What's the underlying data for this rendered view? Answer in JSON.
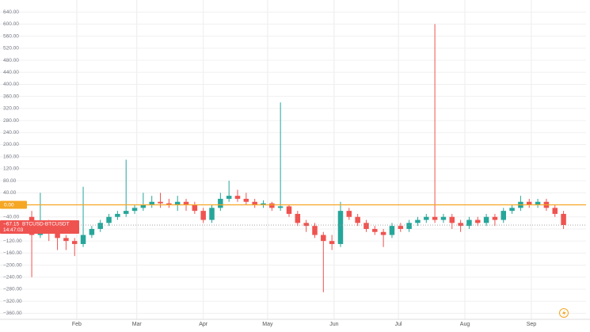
{
  "chart_data": {
    "type": "candlestick",
    "x": [
      10,
      14,
      18,
      22,
      26,
      30,
      34,
      38,
      42,
      46,
      50,
      54,
      58,
      62,
      66,
      70,
      74,
      78,
      82,
      86,
      90,
      94,
      98,
      102,
      106,
      110,
      114,
      118,
      122,
      126,
      130,
      134,
      138,
      142,
      146,
      150,
      154,
      158,
      162,
      166,
      170,
      174,
      178,
      182,
      186,
      190,
      194,
      198,
      202,
      206,
      210,
      214,
      218,
      222,
      226,
      230,
      234,
      238,
      242,
      246,
      250,
      254,
      258
    ],
    "open": [
      -40,
      -100,
      -60,
      -90,
      -110,
      -120,
      -130,
      -100,
      -80,
      -60,
      -40,
      -30,
      -20,
      -10,
      0,
      10,
      5,
      0,
      10,
      0,
      -20,
      -50,
      -10,
      20,
      30,
      20,
      10,
      0,
      5,
      -10,
      -5,
      -30,
      -60,
      -70,
      -100,
      -120,
      -130,
      -20,
      -40,
      -60,
      -80,
      -90,
      -100,
      -70,
      -80,
      -60,
      -50,
      -40,
      -50,
      -40,
      -60,
      -70,
      -50,
      -60,
      -40,
      -50,
      -20,
      -10,
      10,
      0,
      10,
      -10,
      -30
    ],
    "high": [
      -20,
      40,
      -50,
      -80,
      -100,
      -110,
      60,
      -70,
      -50,
      -30,
      -20,
      150,
      0,
      40,
      30,
      40,
      20,
      30,
      20,
      10,
      -10,
      0,
      40,
      80,
      50,
      40,
      20,
      15,
      10,
      340,
      0,
      -20,
      -50,
      -60,
      -90,
      -100,
      10,
      -10,
      -30,
      -50,
      -70,
      -80,
      -60,
      -60,
      -50,
      -40,
      -30,
      600,
      -30,
      -30,
      -50,
      -40,
      -40,
      -30,
      -30,
      -10,
      0,
      30,
      20,
      20,
      20,
      0,
      -20
    ],
    "low": [
      -240,
      -110,
      -120,
      -150,
      -150,
      -170,
      -140,
      -110,
      -90,
      -70,
      -50,
      -40,
      -30,
      -20,
      -10,
      -10,
      -10,
      -20,
      -20,
      -30,
      -60,
      -60,
      -20,
      10,
      10,
      0,
      -10,
      -10,
      -20,
      -20,
      -40,
      -70,
      -90,
      -110,
      -290,
      -150,
      -140,
      -50,
      -70,
      -90,
      -100,
      -140,
      -110,
      -90,
      -90,
      -70,
      -60,
      -60,
      -60,
      -80,
      -90,
      -80,
      -70,
      -70,
      -70,
      -60,
      -30,
      -20,
      -10,
      -10,
      -20,
      -40,
      -80
    ],
    "close": [
      -100,
      -60,
      -90,
      -110,
      -120,
      -130,
      -100,
      -80,
      -60,
      -40,
      -30,
      -20,
      -10,
      0,
      10,
      5,
      0,
      10,
      0,
      -20,
      -50,
      -10,
      20,
      30,
      20,
      10,
      0,
      5,
      -10,
      -5,
      -30,
      -60,
      -70,
      -100,
      -120,
      -130,
      -20,
      -40,
      -60,
      -80,
      -90,
      -100,
      -70,
      -80,
      -60,
      -50,
      -40,
      -50,
      -40,
      -60,
      -70,
      -50,
      -60,
      -40,
      -50,
      -20,
      -10,
      10,
      0,
      10,
      -10,
      -30,
      -67.15
    ],
    "up_color": "#26a69a",
    "down_color": "#ef5350",
    "xlim": [
      -4.8,
      268.5
    ],
    "xticks": [
      {
        "value": 31,
        "label": "Feb"
      },
      {
        "value": 59,
        "label": "Mar"
      },
      {
        "value": 90,
        "label": "Apr"
      },
      {
        "value": 120,
        "label": "May"
      },
      {
        "value": 151,
        "label": "Jun"
      },
      {
        "value": 181,
        "label": "Jul"
      },
      {
        "value": 212,
        "label": "Aug"
      },
      {
        "value": 243,
        "label": "Sep"
      }
    ],
    "ylim": [
      -380,
      680
    ],
    "yticks": [
      {
        "value": -360,
        "label": "−360.00"
      },
      {
        "value": -320,
        "label": "−320.00"
      },
      {
        "value": -280,
        "label": "−280.00"
      },
      {
        "value": -240,
        "label": "−240.00"
      },
      {
        "value": -200,
        "label": "−200.00"
      },
      {
        "value": -160,
        "label": "−160.00"
      },
      {
        "value": -120,
        "label": "−120.00"
      },
      {
        "value": -80,
        "label": "−80.00"
      },
      {
        "value": -40,
        "label": "−40.00"
      },
      {
        "value": 0,
        "label": "0.00"
      },
      {
        "value": 40,
        "label": "40.00"
      },
      {
        "value": 80,
        "label": "80.00"
      },
      {
        "value": 120,
        "label": "120.00"
      },
      {
        "value": 160,
        "label": "160.00"
      },
      {
        "value": 200,
        "label": "200.00"
      },
      {
        "value": 240,
        "label": "240.00"
      },
      {
        "value": 280,
        "label": "280.00"
      },
      {
        "value": 320,
        "label": "320.00"
      },
      {
        "value": 360,
        "label": "360.00"
      },
      {
        "value": 400,
        "label": "400.00"
      },
      {
        "value": 440,
        "label": "440.00"
      },
      {
        "value": 480,
        "label": "480.00"
      },
      {
        "value": 520,
        "label": "520.00"
      },
      {
        "value": 560,
        "label": "560.00"
      },
      {
        "value": 600,
        "label": "600.00"
      },
      {
        "value": 640,
        "label": "640.00"
      }
    ],
    "grid": true,
    "reference_line": {
      "value": 0,
      "label": "0.00",
      "color": "#f5a623"
    },
    "last_price": {
      "value": -67.15,
      "label": "−67.15",
      "symbol": "BTCUSD-BTCUSDT",
      "countdown": "14:47:03",
      "color": "#ef5350"
    }
  }
}
